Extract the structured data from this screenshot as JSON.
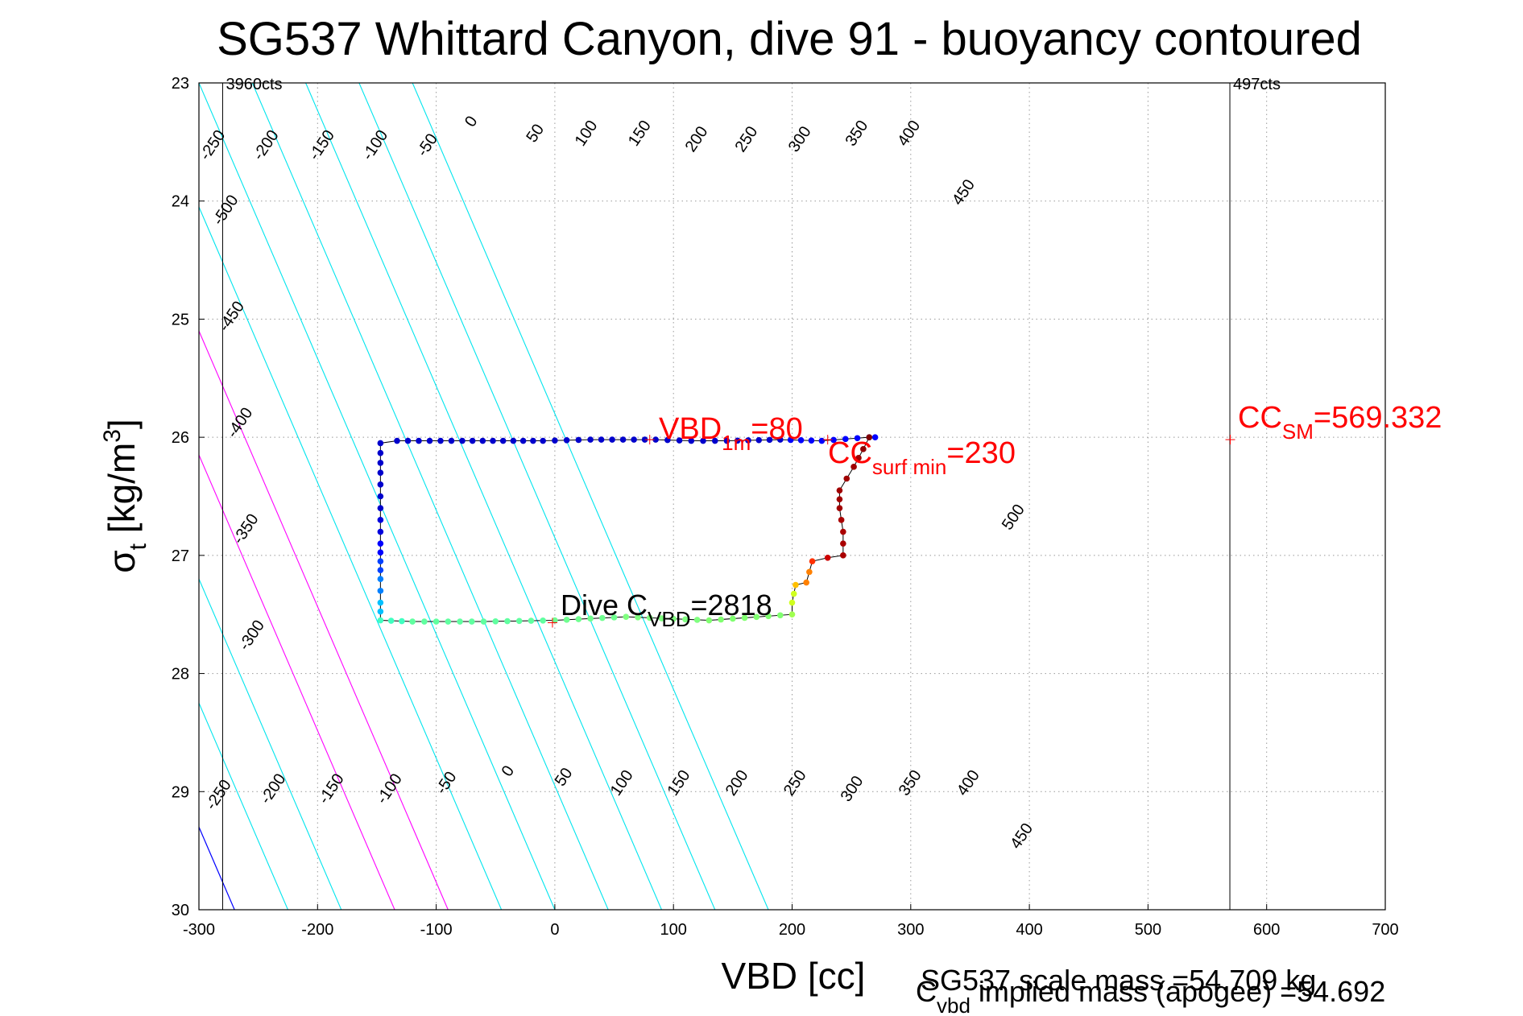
{
  "chart_data": {
    "type": "scatter",
    "title": "SG537 Whittard Canyon, dive 91 - buoyancy contoured",
    "xlabel": "VBD [cc]",
    "ylabel_main": "σ",
    "ylabel_sub": "t",
    "ylabel_rest": " [kg/m",
    "ylabel_sup": "3",
    "ylabel_close": "]",
    "xlim": [
      -300,
      700
    ],
    "ylim": [
      23,
      30
    ],
    "y_reversed": true,
    "grid": true,
    "xticks": [
      -300,
      -200,
      -100,
      0,
      100,
      200,
      300,
      400,
      500,
      600,
      700
    ],
    "yticks": [
      23,
      24,
      25,
      26,
      27,
      28,
      29,
      30
    ],
    "contours": {
      "levels": [
        -500,
        -450,
        -400,
        -350,
        -300,
        -250,
        -200,
        -150,
        -100,
        -50,
        0,
        50,
        100,
        150,
        200,
        250,
        300,
        350,
        400,
        450,
        500
      ],
      "x_at_top": -570,
      "x_at_bottom": -270,
      "spacing_cc": 45,
      "zero_color": "#0000ff",
      "highlight_color": "#ff00ff",
      "highlight_levels": [
        150,
        200
      ],
      "default_color": "#00e5ee",
      "labels_top_row": [
        {
          "v": -250,
          "x": -285,
          "y": 23.55
        },
        {
          "v": -200,
          "x": -240,
          "y": 23.55
        },
        {
          "v": -150,
          "x": -193,
          "y": 23.55
        },
        {
          "v": -100,
          "x": -148,
          "y": 23.55
        },
        {
          "v": -50,
          "x": -104,
          "y": 23.55
        },
        {
          "v": 0,
          "x": -67,
          "y": 23.35
        },
        {
          "v": 50,
          "x": -13,
          "y": 23.45
        },
        {
          "v": 100,
          "x": 30,
          "y": 23.45
        },
        {
          "v": 150,
          "x": 75,
          "y": 23.45
        },
        {
          "v": 200,
          "x": 123,
          "y": 23.5
        },
        {
          "v": 250,
          "x": 165,
          "y": 23.5
        },
        {
          "v": 300,
          "x": 210,
          "y": 23.5
        },
        {
          "v": 350,
          "x": 258,
          "y": 23.45
        },
        {
          "v": 400,
          "x": 302,
          "y": 23.45
        },
        {
          "v": 450,
          "x": 348,
          "y": 23.95
        },
        {
          "v": 500,
          "x": 390,
          "y": 26.7
        }
      ],
      "labels_left_col": [
        {
          "v": -500,
          "x": -274,
          "y": 24.1
        },
        {
          "v": -450,
          "x": -269,
          "y": 25.0
        },
        {
          "v": -400,
          "x": -262,
          "y": 25.9
        },
        {
          "v": -350,
          "x": -257,
          "y": 26.8
        },
        {
          "v": -300,
          "x": -252,
          "y": 27.7
        }
      ],
      "labels_bottom_row": [
        {
          "v": -250,
          "x": -280,
          "y": 29.05
        },
        {
          "v": -200,
          "x": -234,
          "y": 29.0
        },
        {
          "v": -150,
          "x": -185,
          "y": 29.0
        },
        {
          "v": -100,
          "x": -136,
          "y": 29.0
        },
        {
          "v": -50,
          "x": -88,
          "y": 28.95
        },
        {
          "v": 0,
          "x": -36,
          "y": 28.85
        },
        {
          "v": 50,
          "x": 11,
          "y": 28.9
        },
        {
          "v": 100,
          "x": 60,
          "y": 28.95
        },
        {
          "v": 150,
          "x": 108,
          "y": 28.95
        },
        {
          "v": 200,
          "x": 157,
          "y": 28.95
        },
        {
          "v": 250,
          "x": 206,
          "y": 28.95
        },
        {
          "v": 300,
          "x": 254,
          "y": 29.0
        },
        {
          "v": 350,
          "x": 303,
          "y": 28.95
        },
        {
          "v": 400,
          "x": 352,
          "y": 28.95
        },
        {
          "v": 450,
          "x": 397,
          "y": 29.4
        }
      ]
    },
    "verticals": [
      {
        "x": -280,
        "label": "3960cts"
      },
      {
        "x": 569,
        "label": "497cts"
      }
    ],
    "trajectory": [
      {
        "x": 270,
        "y": 26.0,
        "c": "#0000ff"
      },
      {
        "x": 265,
        "y": 26.0,
        "c": "#0000ff"
      },
      {
        "x": 225,
        "y": 26.03,
        "c": "#0000ff"
      },
      {
        "x": 190,
        "y": 26.02,
        "c": "#0000cc"
      },
      {
        "x": 145,
        "y": 26.03,
        "c": "#0000cc"
      },
      {
        "x": 115,
        "y": 26.03,
        "c": "#0000cc"
      },
      {
        "x": 85,
        "y": 26.02,
        "c": "#0000cc"
      },
      {
        "x": 30,
        "y": 26.02,
        "c": "#0000cc"
      },
      {
        "x": -10,
        "y": 26.03,
        "c": "#0000cc"
      },
      {
        "x": -35,
        "y": 26.03,
        "c": "#0000cc"
      },
      {
        "x": -78,
        "y": 26.03,
        "c": "#0000cc"
      },
      {
        "x": -133,
        "y": 26.03,
        "c": "#0000cc"
      },
      {
        "x": -147,
        "y": 26.05,
        "c": "#0000cc"
      },
      {
        "x": -147,
        "y": 26.3,
        "c": "#0000cc"
      },
      {
        "x": -147,
        "y": 26.5,
        "c": "#0000cc"
      },
      {
        "x": -147,
        "y": 26.7,
        "c": "#0000dd"
      },
      {
        "x": -147,
        "y": 26.9,
        "c": "#0000ff"
      },
      {
        "x": -147,
        "y": 27.05,
        "c": "#0040ff"
      },
      {
        "x": -147,
        "y": 27.2,
        "c": "#0080ff"
      },
      {
        "x": -147,
        "y": 27.4,
        "c": "#00c0ff"
      },
      {
        "x": -147,
        "y": 27.55,
        "c": "#40ffc0"
      },
      {
        "x": -120,
        "y": 27.56,
        "c": "#60ffa0"
      },
      {
        "x": -60,
        "y": 27.56,
        "c": "#60ffa0"
      },
      {
        "x": 0,
        "y": 27.55,
        "c": "#70ff90"
      },
      {
        "x": 60,
        "y": 27.52,
        "c": "#80ff80"
      },
      {
        "x": 130,
        "y": 27.55,
        "c": "#80ff70"
      },
      {
        "x": 200,
        "y": 27.5,
        "c": "#a0ff50"
      },
      {
        "x": 200,
        "y": 27.4,
        "c": "#d0ff20"
      },
      {
        "x": 203,
        "y": 27.25,
        "c": "#ffc000"
      },
      {
        "x": 212,
        "y": 27.23,
        "c": "#ff8000"
      },
      {
        "x": 217,
        "y": 27.05,
        "c": "#ff3000"
      },
      {
        "x": 230,
        "y": 27.02,
        "c": "#cc0000"
      },
      {
        "x": 243,
        "y": 27.0,
        "c": "#aa0000"
      },
      {
        "x": 243,
        "y": 26.8,
        "c": "#aa0000"
      },
      {
        "x": 240,
        "y": 26.6,
        "c": "#a00000"
      },
      {
        "x": 240,
        "y": 26.45,
        "c": "#a00000"
      },
      {
        "x": 252,
        "y": 26.25,
        "c": "#a00000"
      },
      {
        "x": 260,
        "y": 26.1,
        "c": "#900000"
      },
      {
        "x": 265,
        "y": 26.0,
        "c": "#800000"
      }
    ],
    "markers": [
      {
        "x": 80,
        "y": 26.02
      },
      {
        "x": 230,
        "y": 26.02
      },
      {
        "x": 569.332,
        "y": 26.02
      },
      {
        "x": -2,
        "y": 27.57
      }
    ],
    "annotations": {
      "vbd_main": "VBD",
      "vbd_sub": "1m",
      "vbd_val": "=80",
      "cc_main": "CC",
      "cc_sub": "surf min",
      "cc_val": "=230",
      "ccsm_main": "CC",
      "ccsm_sub": "SM",
      "ccsm_val": "=569.332",
      "dive_main": "Dive C",
      "dive_sub": "VBD",
      "dive_val": "=2818"
    }
  },
  "footer": {
    "scale_mass": "SG537 scale mass =54.709 kg",
    "implied_main": "C",
    "implied_sub": "vbd",
    "implied_rest": " implied mass (apogee) =54.692"
  }
}
